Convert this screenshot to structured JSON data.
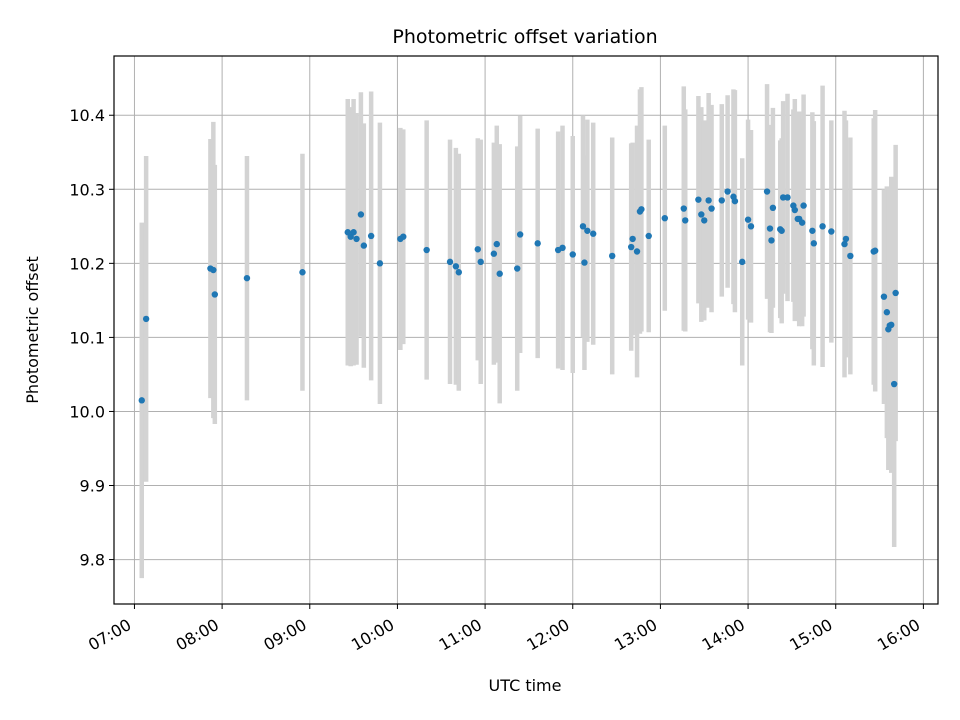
{
  "chart_data": {
    "type": "scatter",
    "title": "Photometric offset variation",
    "xlabel": "UTC time",
    "ylabel": "Photometric offset",
    "x_ticks": [
      "07:00",
      "08:00",
      "09:00",
      "10:00",
      "11:00",
      "12:00",
      "13:00",
      "14:00",
      "15:00",
      "16:00"
    ],
    "y_ticks": [
      "9.8",
      "9.9",
      "10.0",
      "10.1",
      "10.2",
      "10.3",
      "10.4"
    ],
    "xlim": [
      "06:46",
      "16:10"
    ],
    "ylim": [
      9.74,
      10.48
    ],
    "grid": true,
    "point_color": "#1f77b4",
    "errorbar_color": "#d3d3d3",
    "series": [
      {
        "x": [
          "07:05",
          "07:08",
          "07:52",
          "07:54",
          "07:55",
          "08:17",
          "08:55",
          "09:26",
          "09:28",
          "09:30",
          "09:32",
          "09:35",
          "09:37",
          "09:42",
          "09:48",
          "10:02",
          "10:04",
          "10:20",
          "10:36",
          "10:40",
          "10:42",
          "10:55",
          "10:57",
          "11:06",
          "11:08",
          "11:10",
          "11:22",
          "11:24",
          "11:36",
          "11:50",
          "11:53",
          "12:00",
          "12:07",
          "12:08",
          "12:10",
          "12:14",
          "12:27",
          "12:40",
          "12:41",
          "12:44",
          "12:46",
          "12:47",
          "12:52",
          "13:03",
          "13:16",
          "13:17",
          "13:26",
          "13:28",
          "13:30",
          "13:33",
          "13:35",
          "13:42",
          "13:46",
          "13:50",
          "13:51",
          "13:56",
          "14:00",
          "14:02",
          "14:13",
          "14:15",
          "14:16",
          "14:17",
          "14:22",
          "14:23",
          "14:24",
          "14:27",
          "14:31",
          "14:32",
          "14:34",
          "14:35",
          "14:37",
          "14:38",
          "14:44",
          "14:45",
          "14:51",
          "14:57",
          "15:06",
          "15:07",
          "15:10",
          "15:26",
          "15:27",
          "15:33",
          "15:35",
          "15:36",
          "15:37",
          "15:38",
          "15:40",
          "15:41"
        ],
        "y": [
          10.015,
          10.125,
          10.193,
          10.191,
          10.158,
          10.18,
          10.188,
          10.242,
          10.236,
          10.242,
          10.233,
          10.266,
          10.224,
          10.237,
          10.2,
          10.233,
          10.236,
          10.218,
          10.202,
          10.196,
          10.188,
          10.219,
          10.202,
          10.213,
          10.226,
          10.186,
          10.193,
          10.239,
          10.227,
          10.218,
          10.221,
          10.212,
          10.25,
          10.201,
          10.244,
          10.24,
          10.21,
          10.222,
          10.233,
          10.216,
          10.27,
          10.273,
          10.237,
          10.261,
          10.274,
          10.258,
          10.286,
          10.266,
          10.258,
          10.285,
          10.274,
          10.285,
          10.297,
          10.29,
          10.284,
          10.202,
          10.259,
          10.25,
          10.297,
          10.247,
          10.231,
          10.275,
          10.246,
          10.244,
          10.289,
          10.289,
          10.278,
          10.272,
          10.26,
          10.26,
          10.255,
          10.278,
          10.244,
          10.227,
          10.25,
          10.243,
          10.226,
          10.233,
          10.21,
          10.216,
          10.217,
          10.155,
          10.134,
          10.111,
          10.116,
          10.117,
          10.037,
          10.16
        ],
        "err": [
          0.24,
          0.22,
          0.175,
          0.2,
          0.175,
          0.165,
          0.16,
          0.18,
          0.175,
          0.18,
          0.17,
          0.165,
          0.165,
          0.195,
          0.19,
          0.15,
          0.145,
          0.175,
          0.165,
          0.16,
          0.16,
          0.15,
          0.165,
          0.15,
          0.16,
          0.175,
          0.165,
          0.16,
          0.155,
          0.16,
          0.165,
          0.16,
          0.15,
          0.145,
          0.15,
          0.15,
          0.16,
          0.14,
          0.13,
          0.17,
          0.165,
          0.165,
          0.13,
          0.125,
          0.165,
          0.15,
          0.14,
          0.145,
          0.135,
          0.145,
          0.14,
          0.13,
          0.13,
          0.145,
          0.15,
          0.14,
          0.135,
          0.13,
          0.145,
          0.14,
          0.125,
          0.135,
          0.12,
          0.125,
          0.13,
          0.14,
          0.13,
          0.15,
          0.13,
          0.145,
          0.14,
          0.15,
          0.16,
          0.165,
          0.19,
          0.15,
          0.18,
          0.16,
          0.16,
          0.18,
          0.19,
          0.145,
          0.17,
          0.19,
          0.185,
          0.2,
          0.22,
          0.2
        ]
      }
    ]
  }
}
